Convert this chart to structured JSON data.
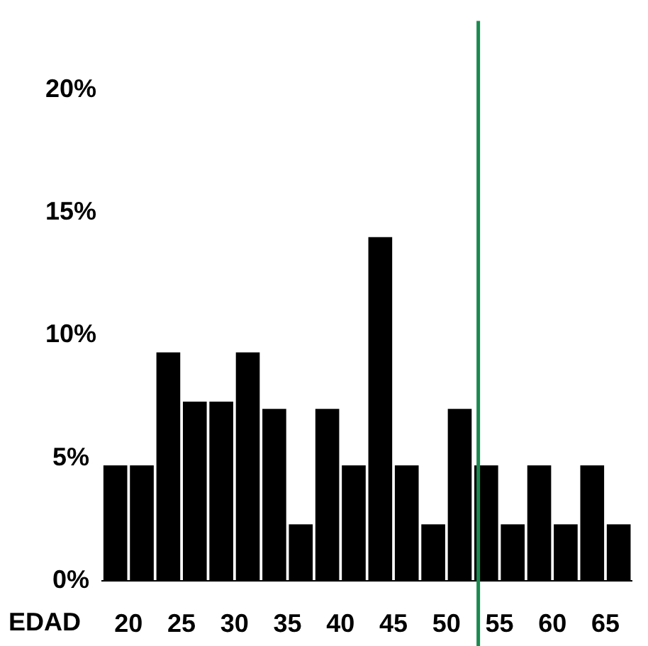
{
  "chart_data": {
    "type": "histogram",
    "xlabel": "EDAD",
    "bins": [
      17.5,
      20,
      22.5,
      25,
      27.5,
      30,
      32.5,
      35,
      37.5,
      40,
      42.5,
      45,
      47.5,
      50,
      52.5,
      55,
      57.5,
      60,
      62.5,
      65,
      67.5
    ],
    "values": [
      4.7,
      4.7,
      9.3,
      7.3,
      7.3,
      9.3,
      7.0,
      2.3,
      7.0,
      4.7,
      14.0,
      4.7,
      2.3,
      7.0,
      4.7,
      2.3,
      4.7,
      2.3,
      4.7,
      2.3
    ],
    "color": "#000000",
    "xlim": [
      17.5,
      67.5
    ],
    "xticks": [
      20,
      25,
      30,
      35,
      40,
      45,
      50,
      55,
      60,
      65
    ],
    "ylim": [
      0,
      22.8
    ],
    "yticks": [
      {
        "value": 0,
        "label": "0%"
      },
      {
        "value": 5,
        "label": "5%"
      },
      {
        "value": 10,
        "label": "10%"
      },
      {
        "value": 15,
        "label": "15%"
      },
      {
        "value": 20,
        "label": "20%"
      }
    ],
    "ref_lines": [
      {
        "axis": "x",
        "value": 53,
        "color": "#1a8a50"
      }
    ],
    "grid": false,
    "legend": false
  }
}
